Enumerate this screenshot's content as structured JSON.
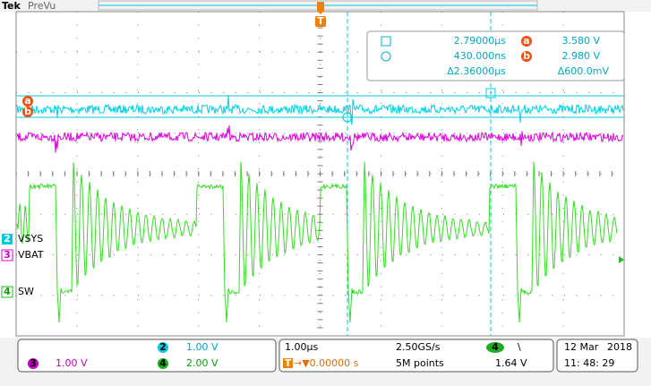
{
  "header": {
    "brand": "Tek",
    "mode": "PreVu"
  },
  "markers": {
    "trigger": "T",
    "cursor_a": "a",
    "cursor_b": "b"
  },
  "cursor_readout": {
    "time_a": "2.79000µs",
    "volt_a_label": "a",
    "volt_a": "3.580 V",
    "time_b": "430.000ns",
    "volt_b_label": "b",
    "volt_b": "2.980 V",
    "delta_time": "Δ2.36000µs",
    "delta_volt": "Δ600.0mV"
  },
  "channels": [
    {
      "number": "2",
      "label": "VSYS",
      "scale": "1.00 V"
    },
    {
      "number": "3",
      "label": "VBAT",
      "scale": "1.00 V"
    },
    {
      "number": "4",
      "label": "SW",
      "scale": "2.00 V"
    }
  ],
  "timebase": {
    "scale": "1.00µs",
    "trigger_position_icon": "T",
    "position": "→▼0.00000 s",
    "sample_rate": "2.50GS/s",
    "record_length": "5M points"
  },
  "trigger": {
    "source": "4",
    "slope": "\\",
    "level": "1.64 V"
  },
  "datetime": {
    "date": "12 Mar",
    "year": "2018",
    "time": "11: 48: 29"
  }
}
